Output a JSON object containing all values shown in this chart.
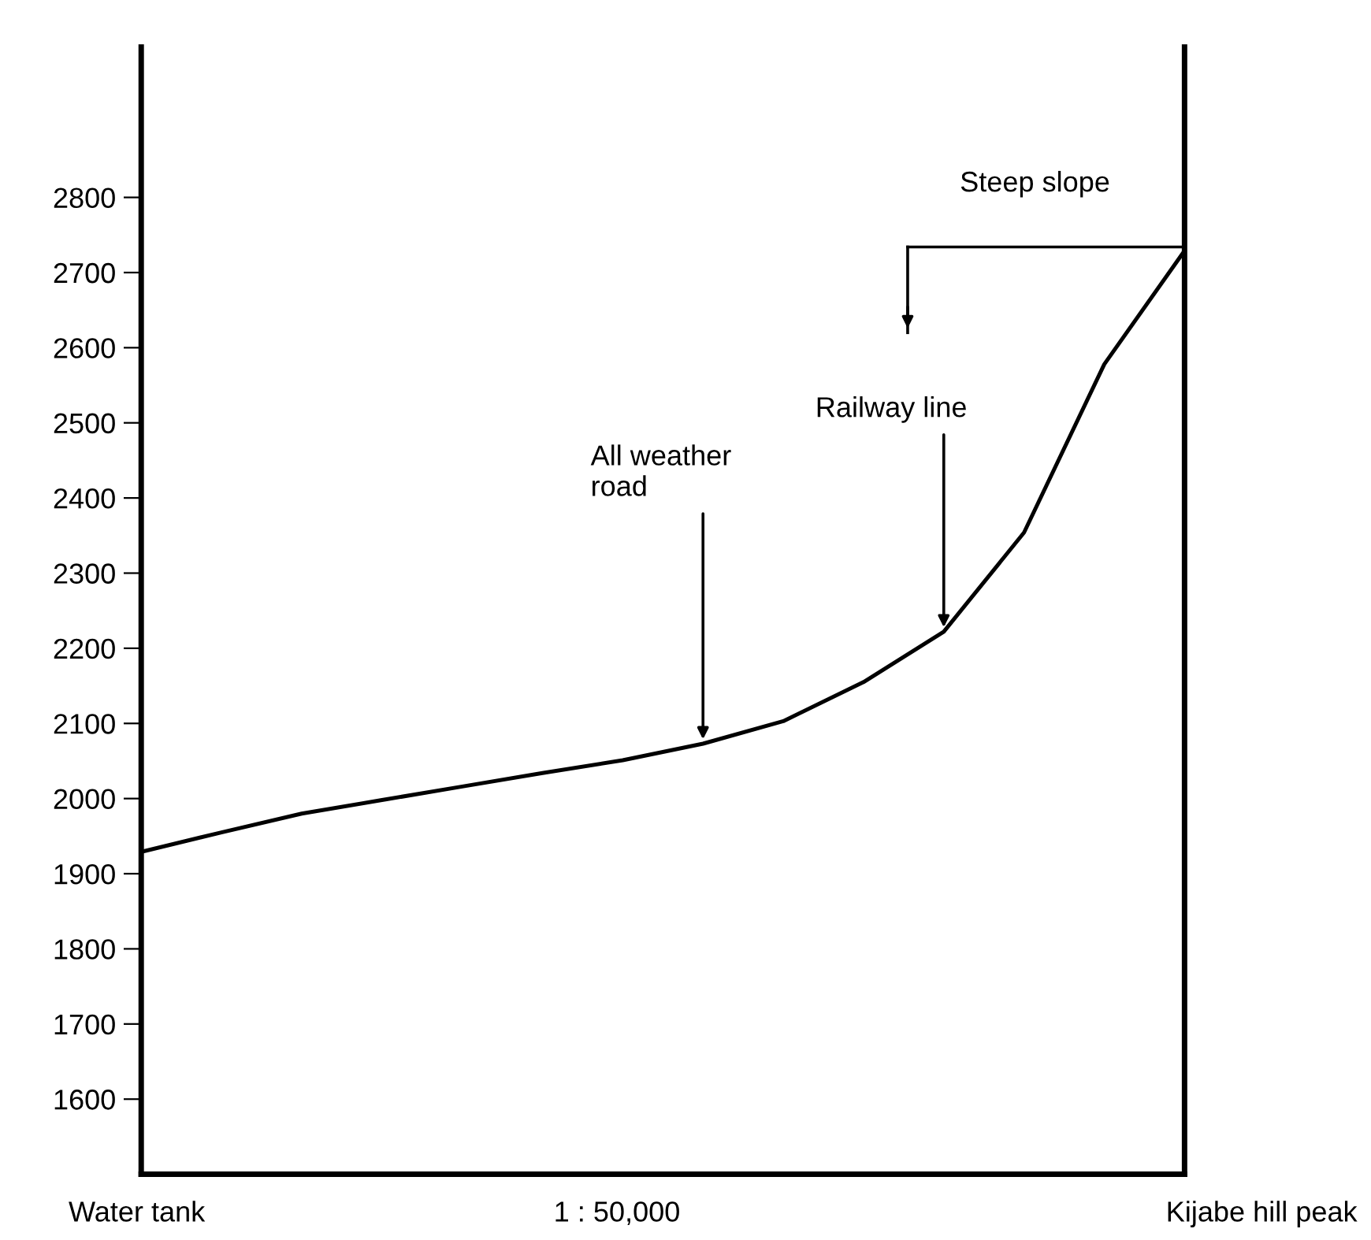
{
  "chart_data": {
    "type": "line",
    "categories": [
      null,
      null,
      null,
      null,
      null,
      null,
      null,
      null,
      null,
      null,
      null,
      null,
      null,
      null
    ],
    "series": [
      {
        "color": "#000000",
        "values": [
          1929,
          1955,
          1980,
          1998,
          2016,
          2034,
          2051,
          2073,
          2103,
          2155,
          2222,
          2354,
          2578,
          2729
        ]
      }
    ],
    "ylim": [
      1500,
      3000
    ],
    "yticks": [
      1600,
      1700,
      1800,
      1900,
      2000,
      2100,
      2200,
      2300,
      2400,
      2500,
      2600,
      2700,
      2800
    ],
    "grid": false,
    "marker": "none",
    "line_style": "solid",
    "annotations": [
      "All weather\nroad",
      "Railway line",
      "Steep slope",
      "Water tank",
      "1 : 50,000",
      "Kijabe hill peak"
    ]
  }
}
